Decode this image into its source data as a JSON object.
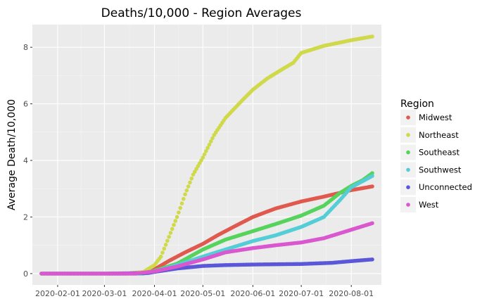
{
  "chart_data": {
    "type": "scatter",
    "title": "Deaths/10,000 - Region Averages",
    "xlabel": "",
    "ylabel": "Average Death/10,000",
    "x_range": [
      "2020-01-22",
      "2020-08-14"
    ],
    "ylim": [
      -0.4,
      8.8
    ],
    "x_ticks": [
      "2020-02-01",
      "2020-03-01",
      "2020-04-01",
      "2020-05-01",
      "2020-06-01",
      "2020-07-01",
      "2020-08-01"
    ],
    "y_ticks": [
      0,
      2,
      4,
      6,
      8
    ],
    "grid": true,
    "background": "#ebebeb",
    "legend": {
      "title": "Region",
      "placement": "right"
    },
    "series": [
      {
        "name": "Midwest",
        "color": "#e0594e",
        "start": "2020-01-22",
        "end": "2020-08-14",
        "points": [
          [
            "2020-01-22",
            0
          ],
          [
            "2020-03-15",
            0
          ],
          [
            "2020-03-25",
            0.05
          ],
          [
            "2020-04-01",
            0.15
          ],
          [
            "2020-04-10",
            0.45
          ],
          [
            "2020-04-20",
            0.75
          ],
          [
            "2020-05-01",
            1.05
          ],
          [
            "2020-05-10",
            1.35
          ],
          [
            "2020-05-20",
            1.65
          ],
          [
            "2020-06-01",
            2.0
          ],
          [
            "2020-06-15",
            2.3
          ],
          [
            "2020-07-01",
            2.55
          ],
          [
            "2020-07-15",
            2.72
          ],
          [
            "2020-08-01",
            2.95
          ],
          [
            "2020-08-14",
            3.08
          ]
        ]
      },
      {
        "name": "Northeast",
        "color": "#cfd94a",
        "start": "2020-01-22",
        "end": "2020-08-14",
        "points": [
          [
            "2020-01-22",
            0
          ],
          [
            "2020-03-15",
            0
          ],
          [
            "2020-03-25",
            0.05
          ],
          [
            "2020-04-01",
            0.3
          ],
          [
            "2020-04-05",
            0.6
          ],
          [
            "2020-04-10",
            1.3
          ],
          [
            "2020-04-15",
            2.0
          ],
          [
            "2020-04-20",
            2.8
          ],
          [
            "2020-04-25",
            3.5
          ],
          [
            "2020-05-01",
            4.1
          ],
          [
            "2020-05-08",
            4.9
          ],
          [
            "2020-05-15",
            5.5
          ],
          [
            "2020-05-25",
            6.1
          ],
          [
            "2020-06-01",
            6.5
          ],
          [
            "2020-06-10",
            6.9
          ],
          [
            "2020-06-20",
            7.25
          ],
          [
            "2020-06-26",
            7.45
          ],
          [
            "2020-07-01",
            7.8
          ],
          [
            "2020-07-15",
            8.05
          ],
          [
            "2020-08-01",
            8.25
          ],
          [
            "2020-08-14",
            8.38
          ]
        ]
      },
      {
        "name": "Southeast",
        "color": "#56d35c",
        "start": "2020-01-22",
        "end": "2020-08-14",
        "points": [
          [
            "2020-01-22",
            0
          ],
          [
            "2020-03-25",
            0
          ],
          [
            "2020-04-01",
            0.1
          ],
          [
            "2020-04-15",
            0.35
          ],
          [
            "2020-05-01",
            0.85
          ],
          [
            "2020-05-15",
            1.2
          ],
          [
            "2020-06-01",
            1.5
          ],
          [
            "2020-06-15",
            1.75
          ],
          [
            "2020-07-01",
            2.05
          ],
          [
            "2020-07-15",
            2.4
          ],
          [
            "2020-07-25",
            2.85
          ],
          [
            "2020-08-01",
            3.1
          ],
          [
            "2020-08-08",
            3.3
          ],
          [
            "2020-08-14",
            3.55
          ]
        ]
      },
      {
        "name": "Southwest",
        "color": "#55cdd6",
        "start": "2020-01-22",
        "end": "2020-08-14",
        "points": [
          [
            "2020-01-22",
            0
          ],
          [
            "2020-03-25",
            0
          ],
          [
            "2020-04-01",
            0.08
          ],
          [
            "2020-04-15",
            0.3
          ],
          [
            "2020-05-01",
            0.6
          ],
          [
            "2020-05-15",
            0.85
          ],
          [
            "2020-06-01",
            1.15
          ],
          [
            "2020-06-15",
            1.35
          ],
          [
            "2020-07-01",
            1.65
          ],
          [
            "2020-07-15",
            2.0
          ],
          [
            "2020-07-25",
            2.6
          ],
          [
            "2020-08-01",
            3.05
          ],
          [
            "2020-08-14",
            3.45
          ]
        ]
      },
      {
        "name": "Unconnected",
        "color": "#5b57d9",
        "start": "2020-03-04",
        "end": "2020-08-14",
        "points": [
          [
            "2020-03-04",
            0
          ],
          [
            "2020-03-28",
            0.02
          ],
          [
            "2020-04-01",
            0.06
          ],
          [
            "2020-04-15",
            0.18
          ],
          [
            "2020-05-01",
            0.27
          ],
          [
            "2020-05-15",
            0.3
          ],
          [
            "2020-06-01",
            0.32
          ],
          [
            "2020-07-01",
            0.34
          ],
          [
            "2020-07-20",
            0.38
          ],
          [
            "2020-08-01",
            0.44
          ],
          [
            "2020-08-14",
            0.5
          ]
        ]
      },
      {
        "name": "West",
        "color": "#d957cf",
        "start": "2020-01-22",
        "end": "2020-08-14",
        "points": [
          [
            "2020-01-22",
            0
          ],
          [
            "2020-03-20",
            0
          ],
          [
            "2020-04-01",
            0.08
          ],
          [
            "2020-04-15",
            0.25
          ],
          [
            "2020-05-01",
            0.5
          ],
          [
            "2020-05-15",
            0.75
          ],
          [
            "2020-06-01",
            0.9
          ],
          [
            "2020-06-15",
            1.0
          ],
          [
            "2020-07-01",
            1.1
          ],
          [
            "2020-07-15",
            1.25
          ],
          [
            "2020-08-01",
            1.55
          ],
          [
            "2020-08-14",
            1.78
          ]
        ]
      }
    ]
  }
}
